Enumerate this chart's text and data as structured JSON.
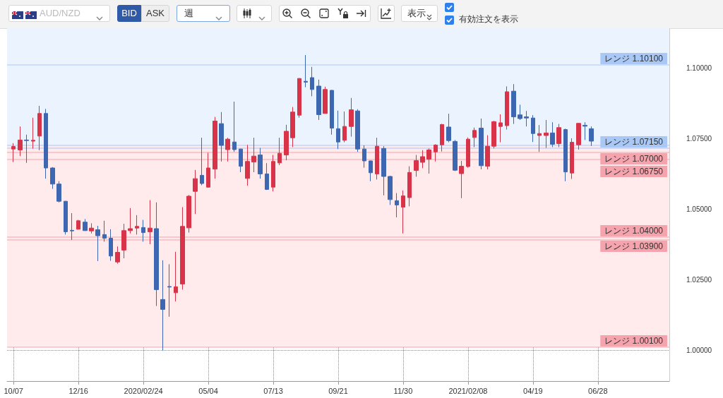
{
  "chart_data": {
    "type": "candlestick",
    "title": "AUD/NZD",
    "annotations": [
      "BID",
      "ASK",
      "週",
      "表示",
      "有効注文を表示"
    ],
    "x": [
      "2019-10-07",
      "2019-10-14",
      "2019-10-21",
      "2019-10-28",
      "2019-11-04",
      "2019-11-11",
      "2019-11-18",
      "2019-11-25",
      "2019-12-02",
      "2019-12-09",
      "2019-12-16",
      "2019-12-23",
      "2019-12-30",
      "2020-01-06",
      "2020-01-13",
      "2020-01-20",
      "2020-01-27",
      "2020-02-03",
      "2020-02-10",
      "2020-02-17",
      "2020-02-24",
      "2020-03-02",
      "2020-03-09",
      "2020-03-16",
      "2020-03-23",
      "2020-03-30",
      "2020-04-06",
      "2020-04-13",
      "2020-04-20",
      "2020-04-27",
      "2020-05-04",
      "2020-05-11",
      "2020-05-18",
      "2020-05-25",
      "2020-06-01",
      "2020-06-08",
      "2020-06-15",
      "2020-06-22",
      "2020-06-29",
      "2020-07-06",
      "2020-07-13",
      "2020-07-20",
      "2020-07-27",
      "2020-08-03",
      "2020-08-10",
      "2020-08-17",
      "2020-08-24",
      "2020-08-31",
      "2020-09-07",
      "2020-09-14",
      "2020-09-21",
      "2020-09-28",
      "2020-10-05",
      "2020-10-12",
      "2020-10-19",
      "2020-10-26",
      "2020-11-02",
      "2020-11-09",
      "2020-11-16",
      "2020-11-23",
      "2020-11-30",
      "2020-12-07",
      "2020-12-14",
      "2020-12-21",
      "2020-12-28",
      "2021-01-04",
      "2021-01-11",
      "2021-01-18",
      "2021-01-25",
      "2021-02-01",
      "2021-02-08",
      "2021-02-15",
      "2021-02-22",
      "2021-03-01",
      "2021-03-08",
      "2021-03-15",
      "2021-03-22",
      "2021-03-29",
      "2021-04-05",
      "2021-04-12",
      "2021-04-19",
      "2021-04-26",
      "2021-05-03",
      "2021-05-10",
      "2021-05-17",
      "2021-05-24",
      "2021-05-31",
      "2021-06-07",
      "2021-06-14",
      "2021-06-21"
    ],
    "ohlc": [
      [
        1.0712,
        1.0733,
        1.0666,
        1.0721
      ],
      [
        1.0709,
        1.0792,
        1.0687,
        1.0744
      ],
      [
        1.0744,
        1.0763,
        1.0663,
        1.0742
      ],
      [
        1.074,
        1.0823,
        1.0713,
        1.0743
      ],
      [
        1.0758,
        1.0865,
        1.0708,
        1.0838
      ],
      [
        1.0838,
        1.0854,
        1.0607,
        1.0645
      ],
      [
        1.0645,
        1.0648,
        1.0571,
        1.0588
      ],
      [
        1.0588,
        1.0598,
        1.0523,
        1.0527
      ],
      [
        1.0527,
        1.0528,
        1.0409,
        1.0419
      ],
      [
        1.0424,
        1.0485,
        1.039,
        1.0422
      ],
      [
        1.0428,
        1.0461,
        1.0427,
        1.0458
      ],
      [
        1.0453,
        1.0464,
        1.0422,
        1.0423
      ],
      [
        1.0422,
        1.0449,
        1.0413,
        1.0432
      ],
      [
        1.0426,
        1.044,
        1.0315,
        1.0405
      ],
      [
        1.0409,
        1.0458,
        1.0384,
        1.0396
      ],
      [
        1.0396,
        1.0428,
        1.0316,
        1.0333
      ],
      [
        1.0312,
        1.0367,
        1.0306,
        1.0346
      ],
      [
        1.0354,
        1.0447,
        1.0325,
        1.0423
      ],
      [
        1.0423,
        1.0503,
        1.0413,
        1.043
      ],
      [
        1.0432,
        1.0478,
        1.0409,
        1.0438
      ],
      [
        1.0434,
        1.0461,
        1.0384,
        1.0416
      ],
      [
        1.0419,
        1.0531,
        1.0375,
        1.0432
      ],
      [
        1.043,
        1.0523,
        1.0156,
        1.0214
      ],
      [
        1.0179,
        1.0318,
        0.9997,
        1.0144
      ],
      [
        1.0225,
        1.0304,
        1.0118,
        1.0223
      ],
      [
        1.0203,
        1.0348,
        1.0172,
        1.0224
      ],
      [
        1.0234,
        1.0506,
        1.0214,
        1.0438
      ],
      [
        1.0433,
        1.0549,
        1.0416,
        1.0545
      ],
      [
        1.0562,
        1.0638,
        1.0482,
        1.0607
      ],
      [
        1.0619,
        1.0752,
        1.0584,
        1.059
      ],
      [
        1.0577,
        1.0699,
        1.0575,
        1.0645
      ],
      [
        1.0641,
        1.0826,
        1.0607,
        1.0811
      ],
      [
        1.0802,
        1.0843,
        1.0668,
        1.0725
      ],
      [
        1.071,
        1.0752,
        1.0668,
        1.0747
      ],
      [
        1.0737,
        1.088,
        1.0702,
        1.071
      ],
      [
        1.0712,
        1.0713,
        1.063,
        1.0651
      ],
      [
        1.0608,
        1.0727,
        1.0582,
        1.0668
      ],
      [
        1.0666,
        1.0752,
        1.063,
        1.0687
      ],
      [
        1.0691,
        1.0716,
        1.0607,
        1.0624
      ],
      [
        1.0624,
        1.0662,
        1.0567,
        1.0569
      ],
      [
        1.0577,
        1.0691,
        1.0562,
        1.0668
      ],
      [
        1.0663,
        1.0752,
        1.0655,
        1.0697
      ],
      [
        1.0691,
        1.0798,
        1.0672,
        1.0775
      ],
      [
        1.0752,
        1.0861,
        1.0719,
        1.0843
      ],
      [
        1.0832,
        1.0963,
        1.0823,
        1.0962
      ],
      [
        1.0952,
        1.1045,
        1.0931,
        1.0949
      ],
      [
        1.0965,
        1.1003,
        1.0899,
        1.0923
      ],
      [
        1.0935,
        1.0958,
        1.0815,
        1.0834
      ],
      [
        1.0838,
        1.0933,
        1.0837,
        1.0923
      ],
      [
        1.092,
        1.0921,
        1.0763,
        1.0786
      ],
      [
        1.0784,
        1.0848,
        1.0712,
        1.0737
      ],
      [
        1.0743,
        1.0845,
        1.0736,
        1.0792
      ],
      [
        1.0792,
        1.0893,
        1.0756,
        1.0851
      ],
      [
        1.0847,
        1.0853,
        1.0702,
        1.0712
      ],
      [
        1.0712,
        1.0725,
        1.0646,
        1.067
      ],
      [
        1.067,
        1.0671,
        1.0598,
        1.0628
      ],
      [
        1.0624,
        1.0752,
        1.0604,
        1.0722
      ],
      [
        1.0714,
        1.0722,
        1.0548,
        1.0615
      ],
      [
        1.0615,
        1.0617,
        1.0514,
        1.0533
      ],
      [
        1.0529,
        1.0556,
        1.047,
        1.0514
      ],
      [
        1.0506,
        1.0565,
        1.0413,
        1.0546
      ],
      [
        1.054,
        1.0651,
        1.0509,
        1.0629
      ],
      [
        1.0636,
        1.0691,
        1.0614,
        1.0671
      ],
      [
        1.0665,
        1.0708,
        1.0644,
        1.0685
      ],
      [
        1.0676,
        1.0714,
        1.0625,
        1.0709
      ],
      [
        1.0702,
        1.0729,
        1.0668,
        1.0726
      ],
      [
        1.0727,
        1.0801,
        1.0703,
        1.0799
      ],
      [
        1.079,
        1.0837,
        1.0736,
        1.0742
      ],
      [
        1.0739,
        1.0744,
        1.0634,
        1.0637
      ],
      [
        1.0625,
        1.067,
        1.0538,
        1.0651
      ],
      [
        1.065,
        1.0753,
        1.0646,
        1.0747
      ],
      [
        1.0753,
        1.0788,
        1.0719,
        1.0778
      ],
      [
        1.0786,
        1.082,
        1.064,
        1.0653
      ],
      [
        1.0651,
        1.0761,
        1.064,
        1.0722
      ],
      [
        1.0722,
        1.0812,
        1.0714,
        1.0809
      ],
      [
        1.0792,
        1.0835,
        1.0736,
        1.0805
      ],
      [
        1.0795,
        1.0934,
        1.0781,
        1.0915
      ],
      [
        1.0917,
        1.0942,
        1.0801,
        1.0826
      ],
      [
        1.0833,
        1.0869,
        1.0815,
        1.082
      ],
      [
        1.0826,
        1.0847,
        1.0792,
        1.0822
      ],
      [
        1.0822,
        1.0832,
        1.0737,
        1.0767
      ],
      [
        1.076,
        1.0797,
        1.0702,
        1.0767
      ],
      [
        1.076,
        1.0815,
        1.0716,
        1.0769
      ],
      [
        1.0769,
        1.0807,
        1.0719,
        1.0729
      ],
      [
        1.0731,
        1.0801,
        1.0719,
        1.0788
      ],
      [
        1.0781,
        1.0784,
        1.0598,
        1.0631
      ],
      [
        1.0627,
        1.075,
        1.0606,
        1.0736
      ],
      [
        1.0727,
        1.0804,
        1.071,
        1.0803
      ],
      [
        1.0796,
        1.0807,
        1.0744,
        1.0793
      ],
      [
        1.0784,
        1.0792,
        1.0723,
        1.074
      ]
    ],
    "colors": [
      "#d9334a",
      "#d9334a",
      "#3d67b1",
      "#d9334a",
      "#d9334a",
      "#3d67b1",
      "#3d67b1",
      "#3d67b1",
      "#3d67b1",
      "#3d67b1",
      "#d9334a",
      "#3d67b1",
      "#d9334a",
      "#3d67b1",
      "#3d67b1",
      "#3d67b1",
      "#d9334a",
      "#d9334a",
      "#d9334a",
      "#d9334a",
      "#3d67b1",
      "#d9334a",
      "#3d67b1",
      "#3d67b1",
      "#3d67b1",
      "#d9334a",
      "#d9334a",
      "#d9334a",
      "#d9334a",
      "#3d67b1",
      "#d9334a",
      "#d9334a",
      "#3d67b1",
      "#d9334a",
      "#3d67b1",
      "#3d67b1",
      "#d9334a",
      "#d9334a",
      "#3d67b1",
      "#3d67b1",
      "#d9334a",
      "#d9334a",
      "#d9334a",
      "#d9334a",
      "#d9334a",
      "#3d67b1",
      "#3d67b1",
      "#3d67b1",
      "#d9334a",
      "#3d67b1",
      "#3d67b1",
      "#d9334a",
      "#d9334a",
      "#3d67b1",
      "#3d67b1",
      "#3d67b1",
      "#d9334a",
      "#3d67b1",
      "#3d67b1",
      "#3d67b1",
      "#d9334a",
      "#d9334a",
      "#d9334a",
      "#d9334a",
      "#d9334a",
      "#d9334a",
      "#d9334a",
      "#3d67b1",
      "#3d67b1",
      "#d9334a",
      "#d9334a",
      "#d9334a",
      "#3d67b1",
      "#d9334a",
      "#d9334a",
      "#d9334a",
      "#d9334a",
      "#3d67b1",
      "#3d67b1",
      "#3d67b1",
      "#3d67b1",
      "#d9334a",
      "#d9334a",
      "#3d67b1",
      "#d9334a",
      "#3d67b1",
      "#d9334a",
      "#d9334a",
      "#3d67b1",
      "#3d67b1"
    ],
    "xlim": [
      "2019-09-30",
      "2021-09-13"
    ],
    "xticks": [
      {
        "value": "2019-10-07",
        "label": "10/07"
      },
      {
        "value": "2019-12-16",
        "label": "12/16"
      },
      {
        "value": "2020-02-24",
        "label": "2020/02/24"
      },
      {
        "value": "2020-05-04",
        "label": "05/04"
      },
      {
        "value": "2020-07-13",
        "label": "07/13"
      },
      {
        "value": "2020-09-21",
        "label": "09/21"
      },
      {
        "value": "2020-11-30",
        "label": "11/30"
      },
      {
        "value": "2021-02-08",
        "label": "2021/02/08"
      },
      {
        "value": "2021-04-19",
        "label": "04/19"
      },
      {
        "value": "2021-06-28",
        "label": "06/28"
      }
    ],
    "ylim": [
      0.989,
      1.114
    ],
    "yticks": [
      {
        "value": 1.0,
        "label": "1.00000"
      },
      {
        "value": 1.025,
        "label": "1.02500"
      },
      {
        "value": 1.05,
        "label": "1.05000"
      },
      {
        "value": 1.075,
        "label": "1.07500"
      },
      {
        "value": 1.1,
        "label": "1.10000"
      }
    ],
    "grid": true,
    "bands": [
      {
        "axis": "y",
        "from": 1.0715,
        "to": 1.114,
        "color": "#ebf3fe"
      },
      {
        "axis": "y",
        "from": 1.001,
        "to": 1.0725,
        "color": "#ffeaec"
      }
    ],
    "ref_lines": [
      {
        "axis": "y",
        "value": 1.101,
        "label": "レンジ 1.10100",
        "color": "#a9c8f5"
      },
      {
        "axis": "y",
        "value": 1.0725,
        "label": null,
        "color": "#a9c8f5"
      },
      {
        "axis": "y",
        "value": 1.0715,
        "label": "レンジ 1.07150",
        "color": "#a9c8f5"
      },
      {
        "axis": "y",
        "value": 1.07,
        "label": "レンジ 1.07000",
        "color": "#f5a3ad"
      },
      {
        "axis": "y",
        "value": 1.0675,
        "label": "レンジ 1.06750",
        "color": "#f5a3ad"
      },
      {
        "axis": "y",
        "value": 1.04,
        "label": "レンジ 1.04000",
        "color": "#f5a3ad"
      },
      {
        "axis": "y",
        "value": 1.039,
        "label": "レンジ 1.03900",
        "color": "#f5a3ad"
      },
      {
        "axis": "y",
        "value": 1.001,
        "label": "レンジ 1.00100",
        "color": "#f5a3ad"
      }
    ]
  }
}
